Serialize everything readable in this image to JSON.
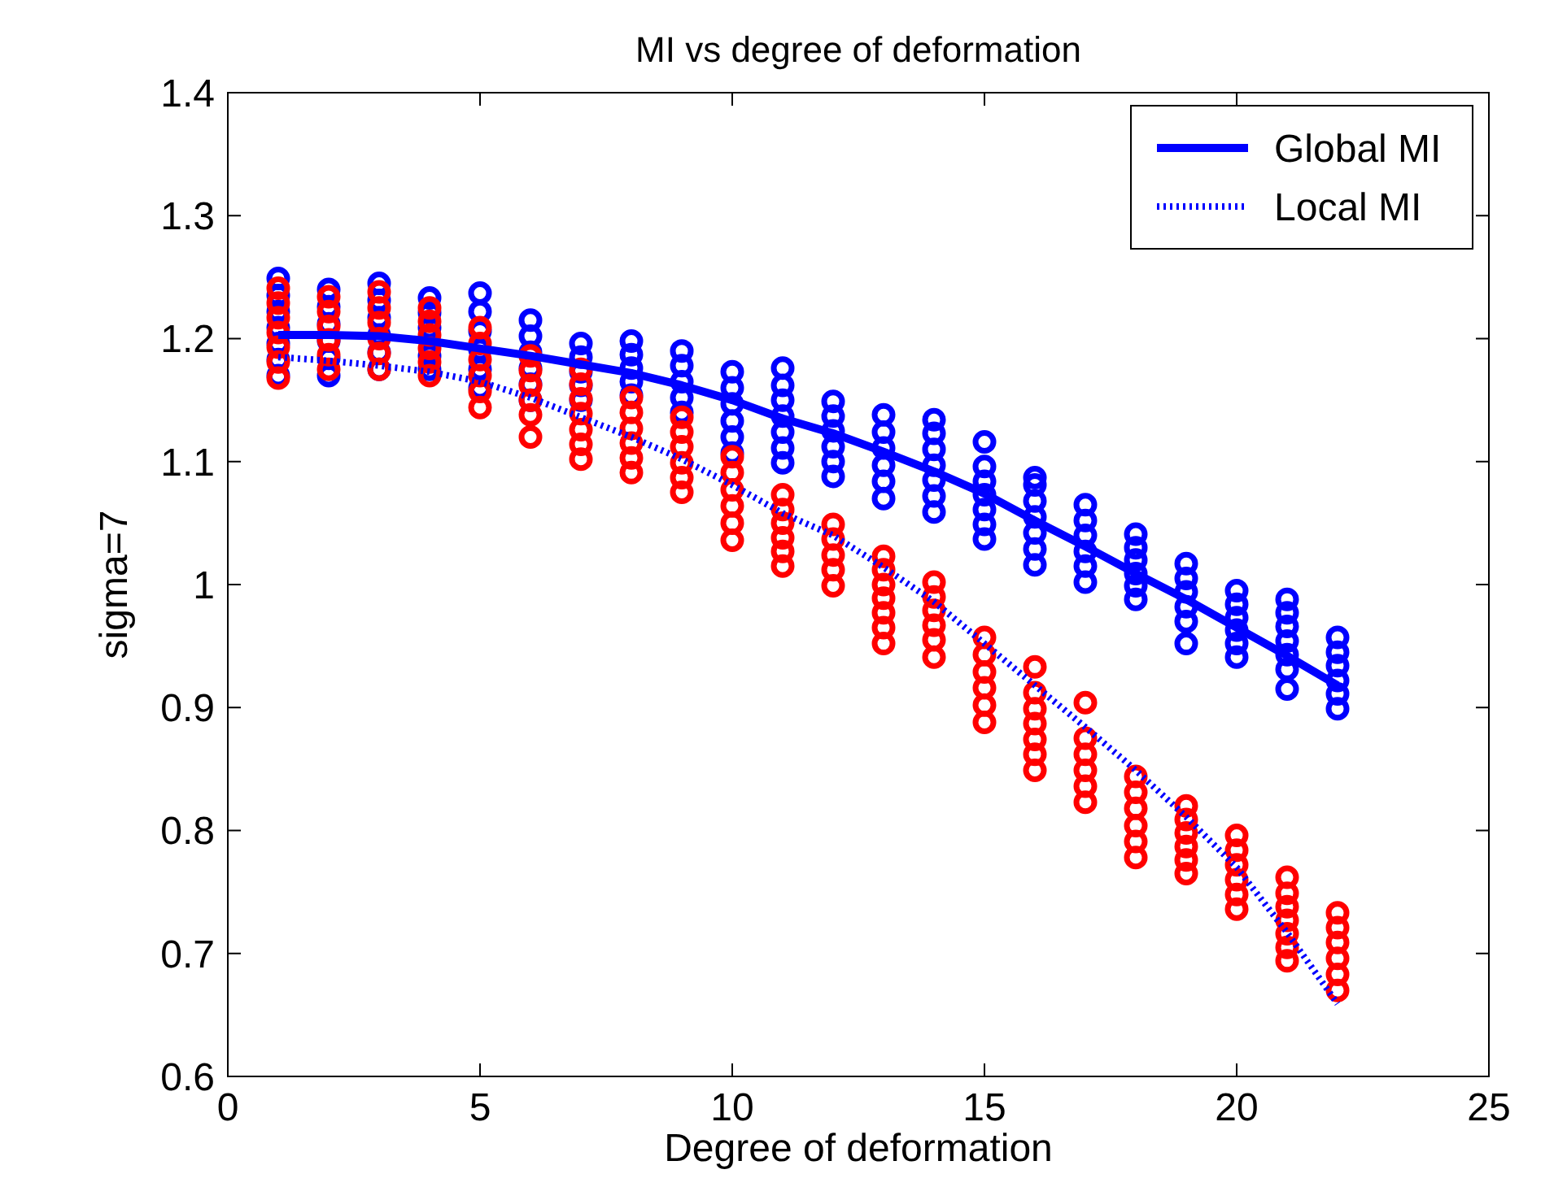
{
  "chart_data": {
    "type": "scatter",
    "title": "MI vs degree of deformation",
    "xlabel": "Degree of deformation",
    "ylabel": "sigma=7",
    "xlim": [
      0,
      25
    ],
    "xticks": [
      0,
      5,
      10,
      15,
      20,
      25
    ],
    "ylim": [
      0.6,
      1.4
    ],
    "yticks": [
      0.6,
      0.7,
      0.8,
      0.9,
      1,
      1.1,
      1.2,
      1.3,
      1.4
    ],
    "legend": "top right",
    "series": [
      {
        "color": "#0000ff",
        "marker": "circle",
        "x": [
          1,
          1,
          1,
          1,
          1,
          1,
          1,
          2,
          2,
          2,
          2,
          2,
          2,
          3,
          3,
          3,
          3,
          3,
          3,
          4,
          4,
          4,
          4,
          4,
          5,
          5,
          5,
          5,
          5,
          5,
          6,
          6,
          6,
          6,
          6,
          6,
          7,
          7,
          7,
          7,
          7,
          8,
          8,
          8,
          8,
          8,
          9,
          9,
          9,
          9,
          9,
          10,
          10,
          10,
          10,
          10,
          10,
          11,
          11,
          11,
          11,
          11,
          11,
          11,
          12,
          12,
          12,
          12,
          12,
          12,
          13,
          13,
          13,
          13,
          13,
          13,
          14,
          14,
          14,
          14,
          14,
          14,
          14,
          15,
          15,
          15,
          15,
          15,
          15,
          15,
          16,
          16,
          16,
          16,
          16,
          16,
          16,
          17,
          17,
          17,
          17,
          17,
          17,
          18,
          18,
          18,
          18,
          18,
          18,
          19,
          19,
          19,
          19,
          19,
          19,
          20,
          20,
          20,
          20,
          20,
          20,
          21,
          21,
          21,
          21,
          21,
          21,
          21,
          22,
          22,
          22,
          22,
          22,
          22
        ],
        "values": [
          1.249,
          1.235,
          1.222,
          1.209,
          1.196,
          1.183,
          1.17,
          1.24,
          1.226,
          1.212,
          1.198,
          1.184,
          1.17,
          1.245,
          1.231,
          1.217,
          1.203,
          1.189,
          1.175,
          1.233,
          1.221,
          1.209,
          1.186,
          1.175,
          1.237,
          1.222,
          1.206,
          1.191,
          1.175,
          1.16,
          1.215,
          1.202,
          1.189,
          1.176,
          1.163,
          1.15,
          1.196,
          1.185,
          1.173,
          1.162,
          1.15,
          1.198,
          1.187,
          1.176,
          1.165,
          1.154,
          1.19,
          1.178,
          1.165,
          1.152,
          1.14,
          1.173,
          1.16,
          1.147,
          1.133,
          1.12,
          1.107,
          1.176,
          1.162,
          1.15,
          1.137,
          1.124,
          1.111,
          1.099,
          1.149,
          1.137,
          1.125,
          1.112,
          1.1,
          1.088,
          1.138,
          1.124,
          1.111,
          1.097,
          1.084,
          1.07,
          1.134,
          1.123,
          1.11,
          1.097,
          1.085,
          1.072,
          1.059,
          1.116,
          1.096,
          1.084,
          1.073,
          1.061,
          1.049,
          1.037,
          1.087,
          1.081,
          1.068,
          1.055,
          1.042,
          1.029,
          1.016,
          1.065,
          1.052,
          1.04,
          1.027,
          1.015,
          1.002,
          1.041,
          1.03,
          1.02,
          1.009,
          0.999,
          0.988,
          1.017,
          1.005,
          0.994,
          0.982,
          0.97,
          0.952,
          0.995,
          0.984,
          0.973,
          0.963,
          0.952,
          0.941,
          0.988,
          0.977,
          0.966,
          0.954,
          0.943,
          0.931,
          0.915,
          0.957,
          0.945,
          0.934,
          0.922,
          0.911,
          0.899
        ]
      },
      {
        "color": "#ff0000",
        "marker": "circle",
        "x": [
          1,
          1,
          1,
          1,
          1,
          1,
          1,
          2,
          2,
          2,
          2,
          2,
          2,
          3,
          3,
          3,
          3,
          3,
          3,
          4,
          4,
          4,
          4,
          4,
          4,
          5,
          5,
          5,
          5,
          5,
          5,
          6,
          6,
          6,
          6,
          6,
          6,
          7,
          7,
          7,
          7,
          7,
          7,
          7,
          8,
          8,
          8,
          8,
          8,
          8,
          9,
          9,
          9,
          9,
          9,
          9,
          10,
          10,
          10,
          10,
          10,
          10,
          11,
          11,
          11,
          11,
          11,
          11,
          12,
          12,
          12,
          12,
          12,
          13,
          13,
          13,
          13,
          13,
          13,
          13,
          14,
          14,
          14,
          14,
          14,
          14,
          15,
          15,
          15,
          15,
          15,
          15,
          16,
          16,
          16,
          16,
          16,
          16,
          16,
          17,
          17,
          17,
          17,
          17,
          17,
          18,
          18,
          18,
          18,
          18,
          18,
          19,
          19,
          19,
          19,
          19,
          19,
          20,
          20,
          20,
          20,
          20,
          20,
          21,
          21,
          21,
          21,
          21,
          21,
          21,
          22,
          22,
          22,
          22,
          22,
          22
        ],
        "values": [
          1.241,
          1.229,
          1.217,
          1.205,
          1.193,
          1.181,
          1.168,
          1.234,
          1.222,
          1.21,
          1.199,
          1.187,
          1.175,
          1.238,
          1.225,
          1.213,
          1.2,
          1.188,
          1.175,
          1.225,
          1.214,
          1.203,
          1.192,
          1.181,
          1.17,
          1.209,
          1.196,
          1.183,
          1.17,
          1.157,
          1.144,
          1.186,
          1.174,
          1.162,
          1.15,
          1.138,
          1.12,
          1.175,
          1.163,
          1.151,
          1.139,
          1.126,
          1.114,
          1.102,
          1.152,
          1.14,
          1.127,
          1.115,
          1.103,
          1.091,
          1.136,
          1.124,
          1.112,
          1.099,
          1.087,
          1.075,
          1.104,
          1.091,
          1.077,
          1.064,
          1.05,
          1.036,
          1.073,
          1.061,
          1.05,
          1.038,
          1.027,
          1.015,
          1.049,
          1.037,
          1.024,
          1.012,
          0.999,
          1.023,
          1.012,
          1.0,
          0.989,
          0.977,
          0.965,
          0.952,
          1.002,
          0.99,
          0.979,
          0.967,
          0.955,
          0.941,
          0.957,
          0.943,
          0.929,
          0.916,
          0.902,
          0.888,
          0.933,
          0.912,
          0.899,
          0.887,
          0.874,
          0.862,
          0.849,
          0.904,
          0.875,
          0.862,
          0.849,
          0.836,
          0.823,
          0.844,
          0.831,
          0.818,
          0.804,
          0.791,
          0.778,
          0.82,
          0.809,
          0.798,
          0.787,
          0.776,
          0.765,
          0.796,
          0.784,
          0.772,
          0.76,
          0.748,
          0.736,
          0.762,
          0.749,
          0.738,
          0.727,
          0.716,
          0.705,
          0.694,
          0.733,
          0.721,
          0.709,
          0.696,
          0.683,
          0.67
        ]
      },
      {
        "type": "line",
        "name": "Global MI",
        "color": "#0000ff",
        "line_style": "solid",
        "x": [
          1,
          2,
          3,
          4,
          5,
          6,
          7,
          8,
          9,
          10,
          11,
          12,
          13,
          14,
          15,
          16,
          17,
          18,
          19,
          20,
          21,
          22
        ],
        "values": [
          1.203,
          1.203,
          1.202,
          1.198,
          1.192,
          1.186,
          1.179,
          1.172,
          1.162,
          1.15,
          1.135,
          1.123,
          1.108,
          1.092,
          1.074,
          1.052,
          1.031,
          1.009,
          0.988,
          0.965,
          0.942,
          0.918
        ]
      },
      {
        "type": "line",
        "name": "Local MI",
        "color": "#0000ff",
        "line_style": "dotted",
        "x": [
          1,
          2,
          3,
          4,
          5,
          6,
          7,
          8,
          9,
          10,
          11,
          12,
          13,
          14,
          15,
          16,
          17,
          18,
          19,
          20,
          21,
          22
        ],
        "values": [
          1.185,
          1.182,
          1.178,
          1.173,
          1.165,
          1.152,
          1.136,
          1.12,
          1.102,
          1.081,
          1.058,
          1.04,
          1.014,
          0.986,
          0.952,
          0.918,
          0.884,
          0.849,
          0.811,
          0.77,
          0.717,
          0.659
        ]
      }
    ]
  }
}
